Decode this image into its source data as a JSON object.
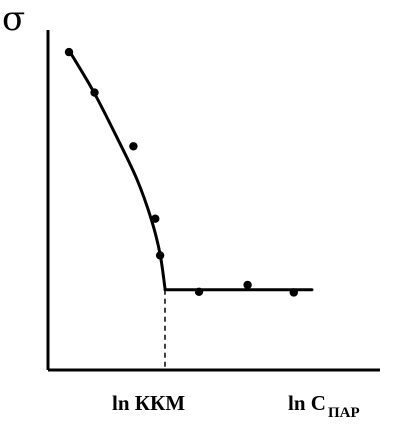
{
  "chart_data": {
    "type": "scatter",
    "ylabel": "σ",
    "xlabel": {
      "main": "ln C",
      "sub": "ПАР"
    },
    "marked_x_label": "ln ККМ",
    "axes_ticks": "none",
    "grid": false,
    "legend": "none",
    "points": [
      {
        "x": 0.0,
        "y": 0.935
      },
      {
        "x": 0.105,
        "y": 0.816
      },
      {
        "x": 0.265,
        "y": 0.658
      },
      {
        "x": 0.355,
        "y": 0.445
      },
      {
        "x": 0.375,
        "y": 0.337
      },
      {
        "x": 0.535,
        "y": 0.23
      },
      {
        "x": 0.735,
        "y": 0.25
      },
      {
        "x": 0.925,
        "y": 0.228
      }
    ],
    "curve": [
      {
        "x": 0.0,
        "y": 0.94
      },
      {
        "x": 0.1,
        "y": 0.82
      },
      {
        "x": 0.2,
        "y": 0.68
      },
      {
        "x": 0.28,
        "y": 0.56
      },
      {
        "x": 0.34,
        "y": 0.44
      },
      {
        "x": 0.375,
        "y": 0.34
      },
      {
        "x": 0.395,
        "y": 0.24
      }
    ],
    "plateau": {
      "x_start": 0.395,
      "x_end": 1.0,
      "y": 0.236
    },
    "ccm_x": 0.395,
    "colors": {
      "ink": "#000000",
      "background": "#ffffff"
    }
  }
}
